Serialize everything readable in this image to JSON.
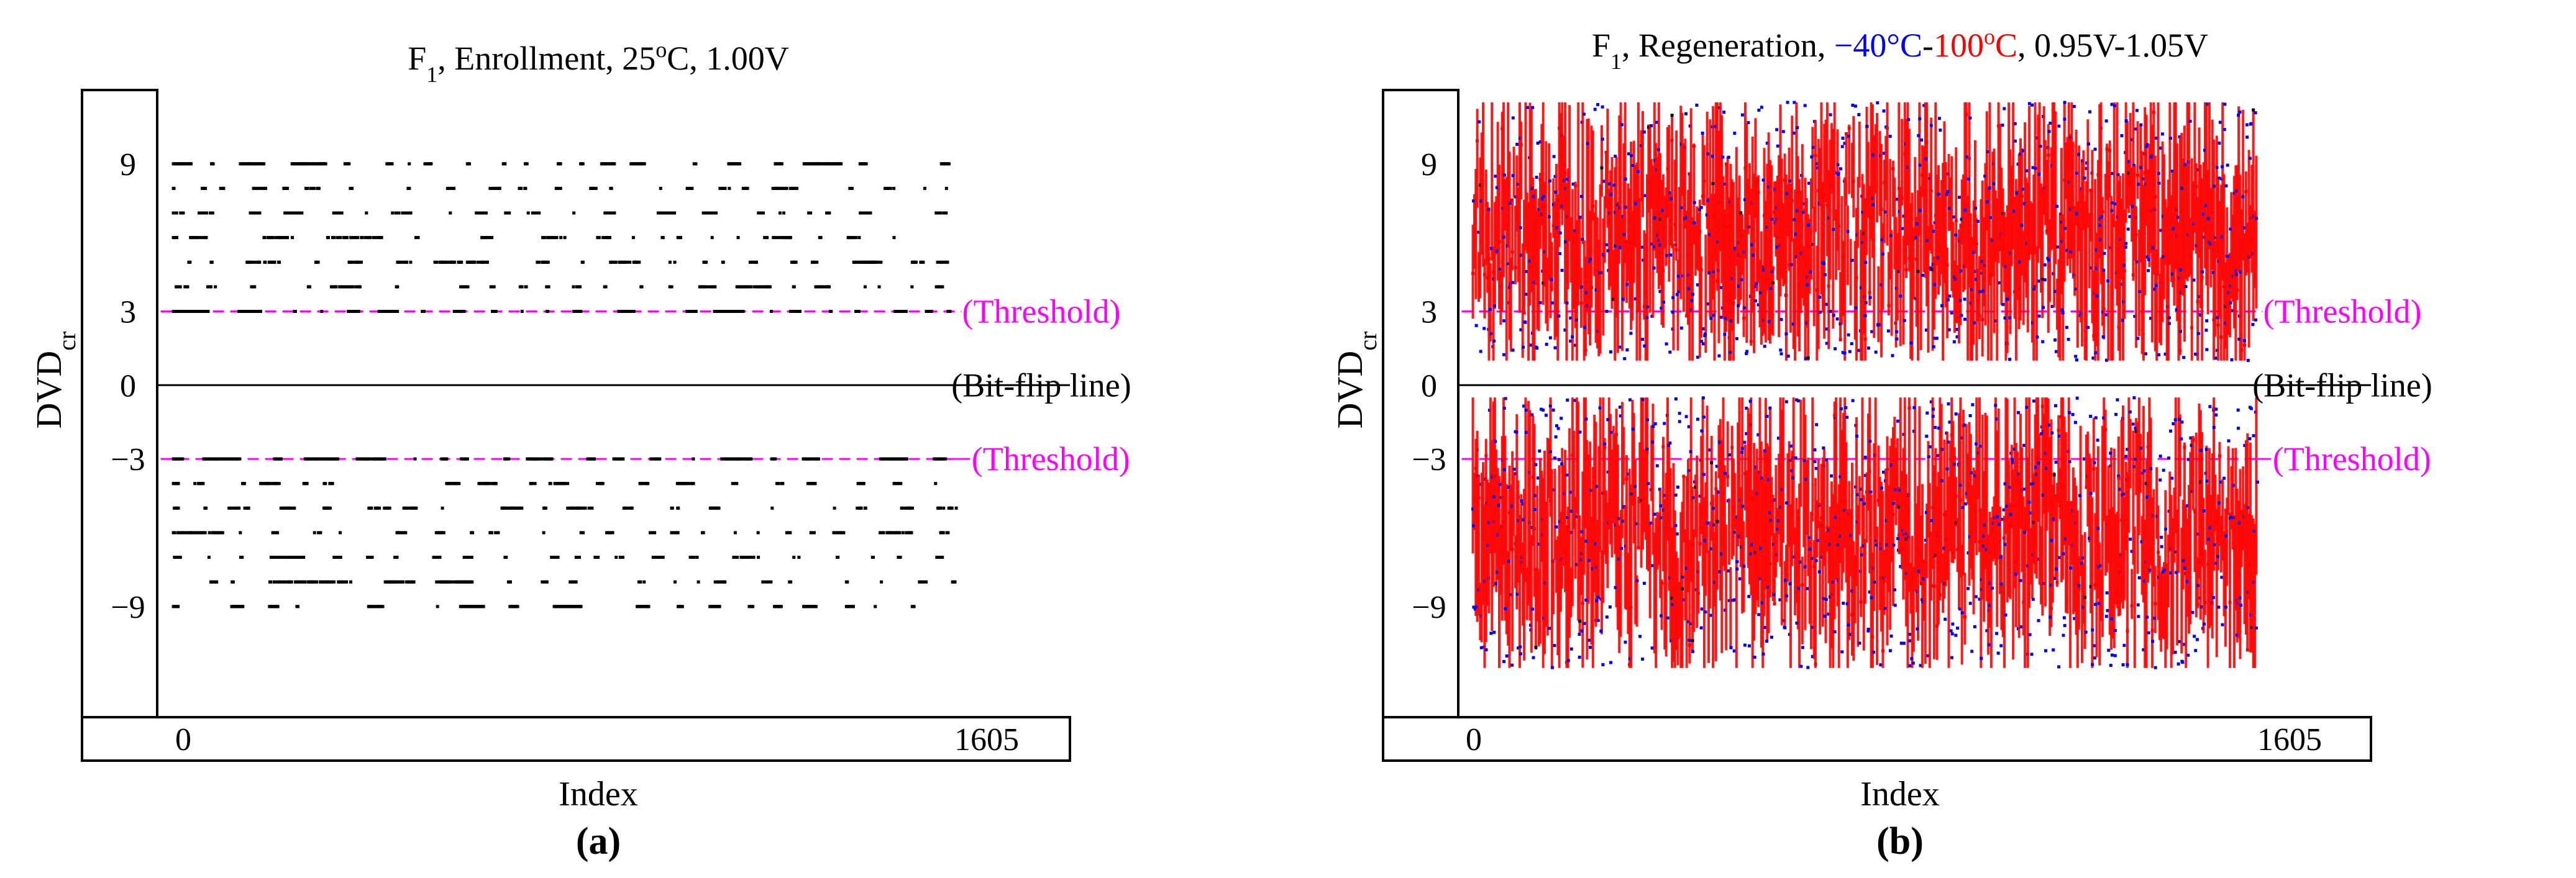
{
  "colors": {
    "axis": "#000000",
    "threshold": "#ff00ff",
    "enroll_points": "#000000",
    "cold": "#0000ff",
    "hot": "#ff0000"
  },
  "chart_data": [
    {
      "id": "a",
      "type": "scatter",
      "title": {
        "prefix": "F",
        "subscript": "1",
        "main": ", Enrollment, 25",
        "degree": "o",
        "suffix": "C, 1.00V"
      },
      "xlabel": "Index",
      "ylabel": {
        "main": "DVD",
        "subscript": "cr"
      },
      "panel_label": "(a)",
      "x_range": [
        0,
        1605
      ],
      "xlim": [
        -30,
        1840
      ],
      "ylim": [
        -13.5,
        12
      ],
      "x_ticks": [
        "0",
        "1605"
      ],
      "y_ticks": [
        {
          "value": 9,
          "label": "9"
        },
        {
          "value": 3,
          "label": "3"
        },
        {
          "value": 0,
          "label": "0"
        },
        {
          "value": -3,
          "label": "−3"
        },
        {
          "value": -9,
          "label": "−9"
        }
      ],
      "reference_lines": [
        {
          "value": 3,
          "label": "(Threshold)",
          "style": "dashed"
        },
        {
          "value": 0,
          "label": "(Bit-flip line)",
          "style": "solid"
        },
        {
          "value": -3,
          "label": "−(Threshold)",
          "style": "dashed"
        }
      ],
      "series": [
        {
          "name": "Enrollment (25°C, 1.00V)",
          "distribution": "discrete levels",
          "levels": [
            9,
            8,
            7,
            6,
            5,
            4,
            3,
            -3,
            -4,
            -5,
            -6,
            -7,
            -8,
            -9
          ],
          "n_points": 1606
        }
      ]
    },
    {
      "id": "b",
      "type": "scatter",
      "title": {
        "prefix": "F",
        "subscript": "1",
        "main": ", Regeneration, ",
        "cold_label": "−40°C",
        "dash": "-",
        "hot_value": "100",
        "hot_degree": "o",
        "hot_unit": "C",
        "suffix": ", 0.95V-1.05V"
      },
      "xlabel": "Index",
      "ylabel": {
        "main": "DVD",
        "subscript": "cr"
      },
      "panel_label": "(b)",
      "x_range": [
        0,
        1605
      ],
      "xlim": [
        -30,
        1840
      ],
      "ylim": [
        -13.5,
        12
      ],
      "x_ticks": [
        "0",
        "1605"
      ],
      "y_ticks": [
        {
          "value": 9,
          "label": "9"
        },
        {
          "value": 3,
          "label": "3"
        },
        {
          "value": 0,
          "label": "0"
        },
        {
          "value": -3,
          "label": "−3"
        },
        {
          "value": -9,
          "label": "−9"
        }
      ],
      "reference_lines": [
        {
          "value": 3,
          "label": "(Threshold)",
          "style": "dashed"
        },
        {
          "value": 0,
          "label": "(Bit-flip line)",
          "style": "solid"
        },
        {
          "value": -3,
          "label": "−(Threshold)",
          "style": "dashed"
        }
      ],
      "series": [
        {
          "name": "−40°C",
          "color": "#0000ff",
          "positive_range": [
            1,
            11.5
          ],
          "negative_range": [
            -11.5,
            -0.5
          ],
          "n_points": 1606
        },
        {
          "name": "100°C",
          "color": "#ff0000",
          "positive_range": [
            1,
            11.5
          ],
          "negative_range": [
            -11.5,
            -0.5
          ],
          "n_points": 1606
        }
      ]
    }
  ]
}
